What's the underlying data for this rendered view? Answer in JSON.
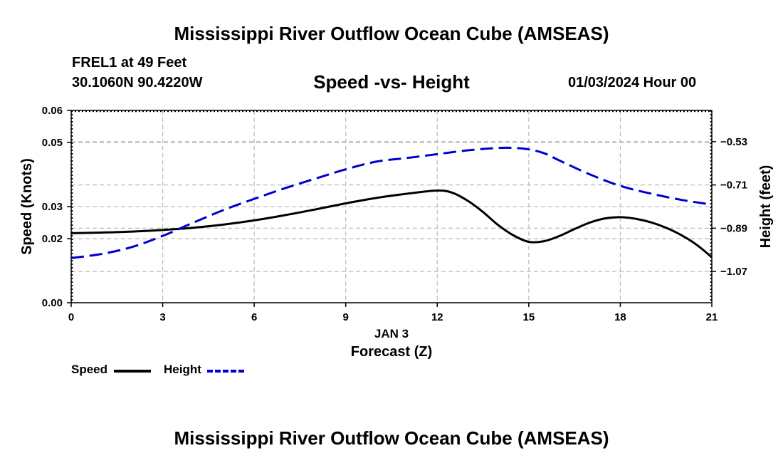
{
  "page": {
    "title": "Mississippi River Outflow Ocean Cube (AMSEAS)",
    "bottom_title": "Mississippi River Outflow Ocean Cube (AMSEAS)",
    "station": "FREL1 at 49 Feet",
    "coords": "30.1060N  90.4220W",
    "datetime": "01/03/2024 Hour 00"
  },
  "colors": {
    "speed": "#000000",
    "height": "#0000cc",
    "grid": "#bbbbbb"
  },
  "chart_data": {
    "type": "line",
    "title": "Speed -vs- Height",
    "xlabel": "Forecast (Z)",
    "xlabel_date": "JAN 3",
    "ylabel": "Speed (Knots)",
    "y2label": "Height (feet)",
    "xlim": [
      0,
      21
    ],
    "ylim": [
      0,
      0.06
    ],
    "y2lim": [
      -1.2,
      -0.4
    ],
    "x_ticks": [
      0,
      3,
      6,
      9,
      12,
      15,
      18,
      21
    ],
    "x_tick_labels": [
      "0",
      "3",
      "6",
      "9",
      "12",
      "15",
      "18",
      "21"
    ],
    "y_ticks": [
      0,
      0.02,
      0.03,
      0.05,
      0.06
    ],
    "y_tick_labels": [
      "0.00",
      "0.02",
      "0.03",
      "0.05",
      "0.06"
    ],
    "y2_ticks": [
      -0.53,
      -0.71,
      -0.89,
      -1.07
    ],
    "y2_tick_labels": [
      "−0.53",
      "−0.71",
      "−0.89",
      "−1.07"
    ],
    "series": [
      {
        "name": "Speed",
        "axis": "left",
        "style": "solid",
        "x": [
          0,
          1,
          2,
          3,
          4,
          5,
          6,
          7,
          8,
          9,
          10,
          11,
          12,
          12.5,
          13,
          13.5,
          14,
          14.5,
          15,
          15.5,
          16,
          16.5,
          17,
          17.5,
          18,
          18.5,
          19,
          19.5,
          20,
          20.5,
          21
        ],
        "values": [
          0.0217,
          0.0219,
          0.0222,
          0.0227,
          0.0234,
          0.0244,
          0.0257,
          0.0273,
          0.0291,
          0.031,
          0.0327,
          0.034,
          0.035,
          0.0343,
          0.0318,
          0.0283,
          0.0242,
          0.021,
          0.019,
          0.0192,
          0.0208,
          0.023,
          0.025,
          0.0263,
          0.0267,
          0.0262,
          0.0251,
          0.0234,
          0.0211,
          0.0181,
          0.0142
        ]
      },
      {
        "name": "Height",
        "axis": "right",
        "style": "dashed",
        "x": [
          0,
          1,
          2,
          3,
          4,
          5,
          6,
          7,
          8,
          9,
          10,
          11,
          12,
          13,
          14,
          14.5,
          15,
          15.5,
          16,
          17,
          18,
          19,
          20,
          21
        ],
        "values": [
          -1.014,
          -0.997,
          -0.968,
          -0.922,
          -0.867,
          -0.814,
          -0.768,
          -0.724,
          -0.684,
          -0.645,
          -0.613,
          -0.598,
          -0.582,
          -0.566,
          -0.556,
          -0.556,
          -0.562,
          -0.578,
          -0.608,
          -0.666,
          -0.714,
          -0.746,
          -0.772,
          -0.792
        ]
      }
    ],
    "legend": [
      {
        "label": "Speed",
        "style": "solid"
      },
      {
        "label": "Height",
        "style": "dashed"
      }
    ],
    "legend_position": "bottom-left"
  }
}
